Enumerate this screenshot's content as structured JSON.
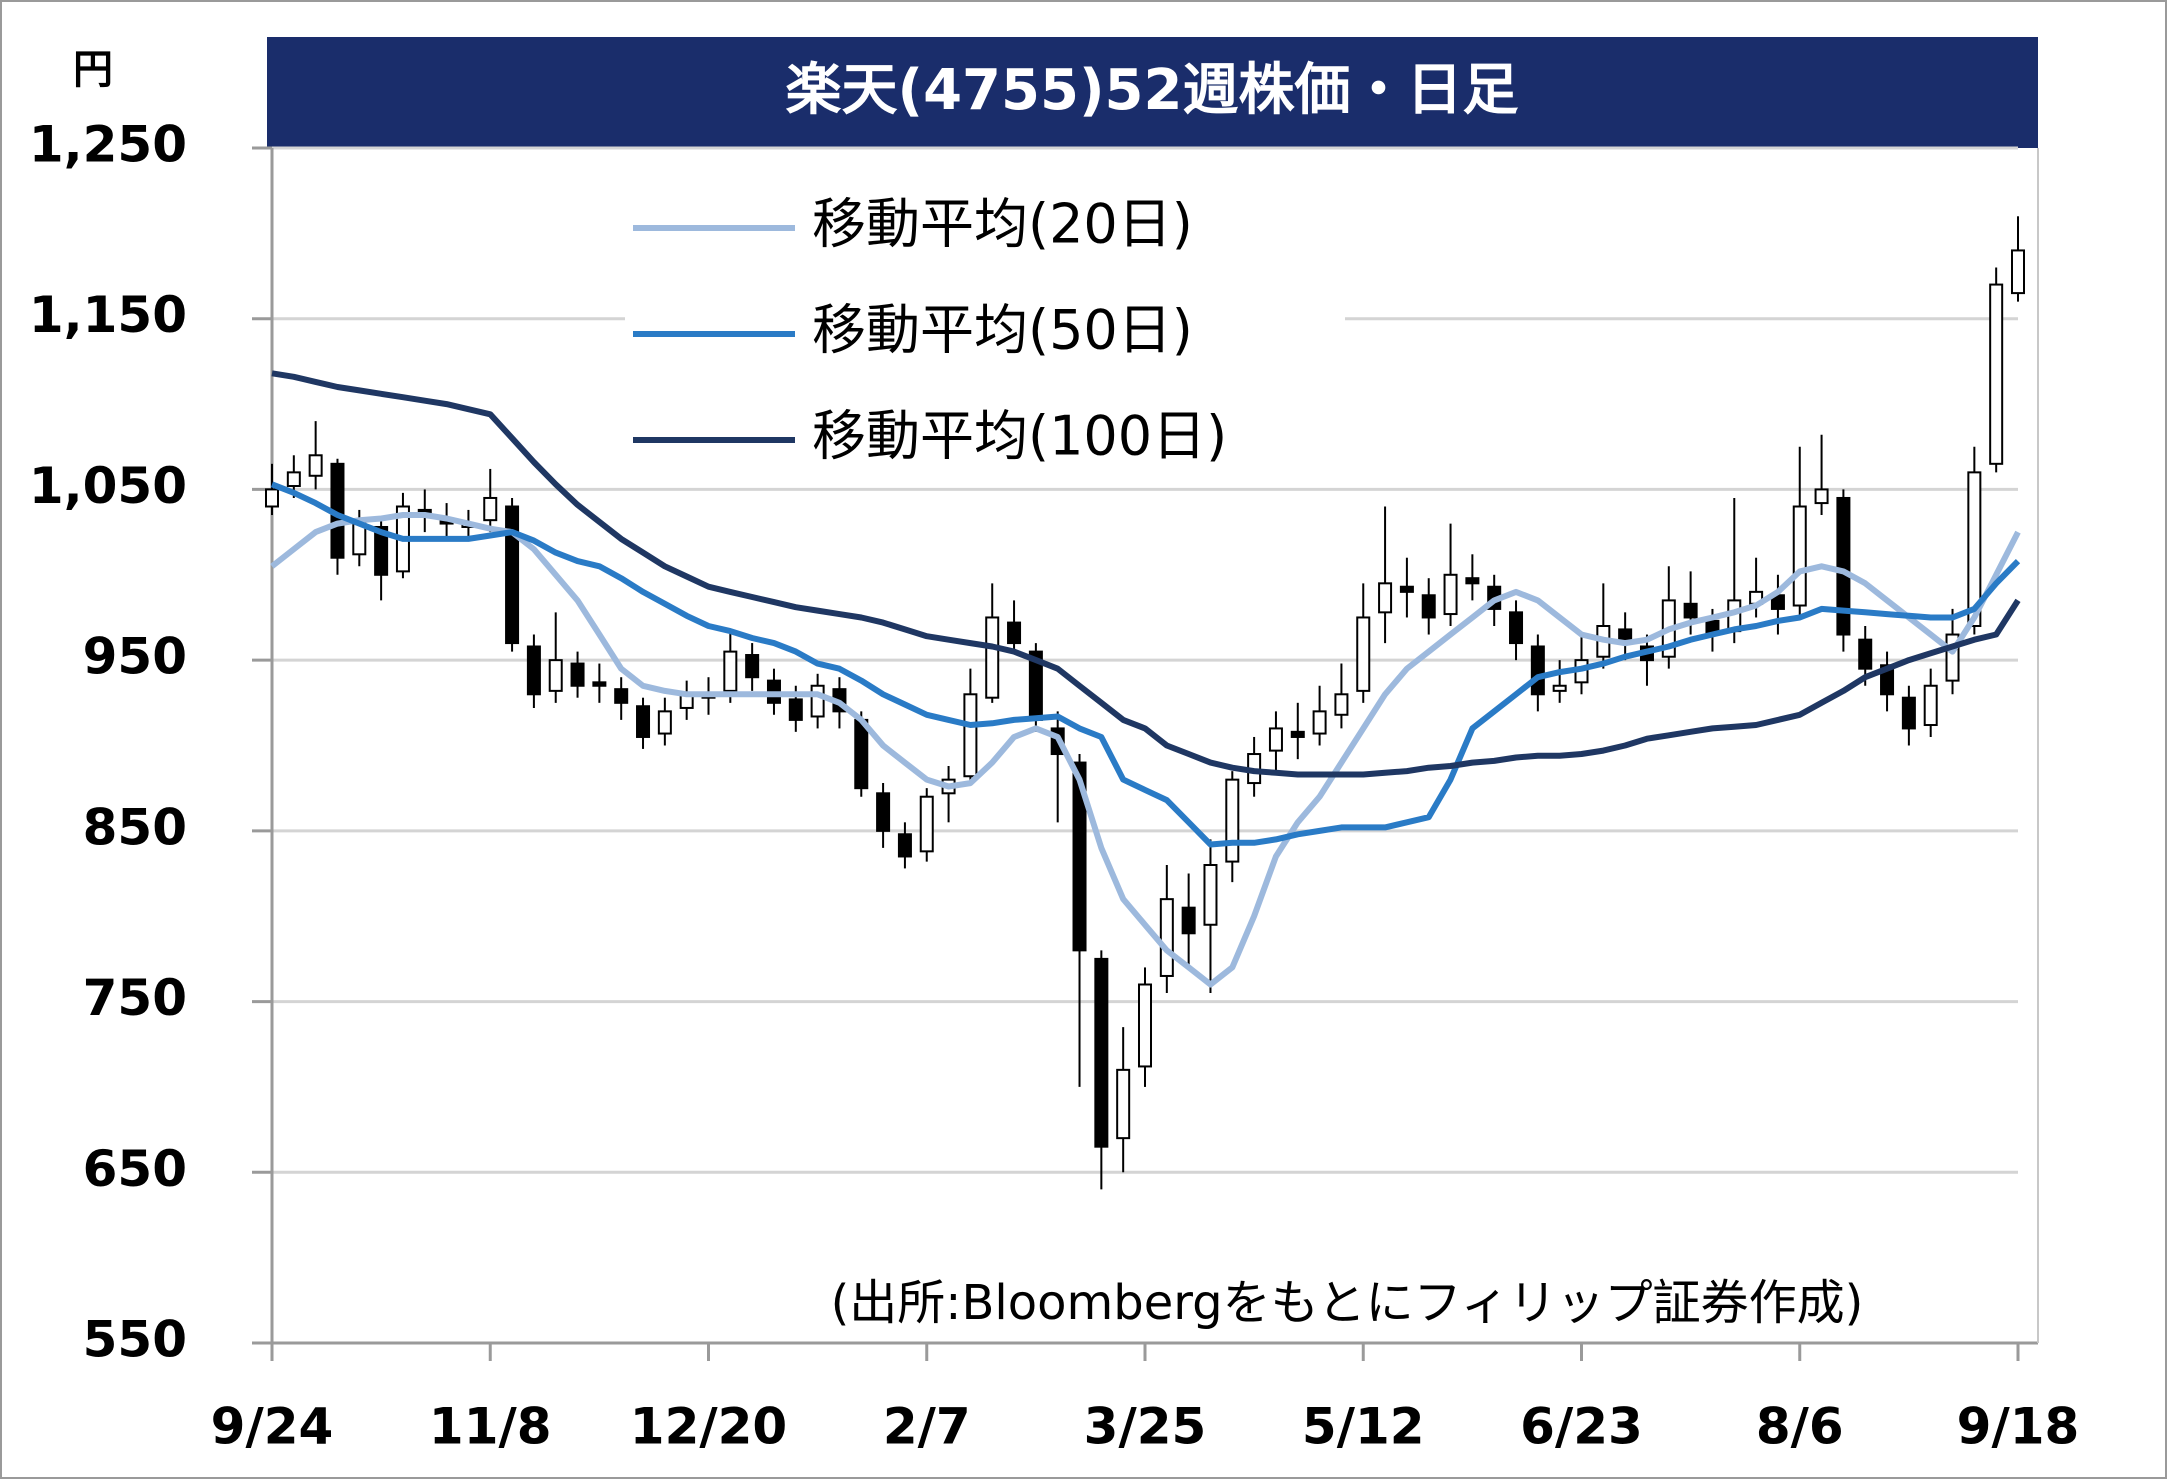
{
  "chart_data": {
    "type": "candlestick",
    "title": "楽天(4755)52週株価・日足",
    "y_unit": "円",
    "note": "(出所:Bloombergをもとにフィリップ証券作成)",
    "categories": [
      "9/24",
      null,
      null,
      null,
      null,
      null,
      null,
      null,
      null,
      null,
      "11/8",
      null,
      null,
      null,
      null,
      null,
      null,
      null,
      null,
      null,
      "12/20",
      null,
      null,
      null,
      null,
      null,
      null,
      null,
      null,
      null,
      "2/7",
      null,
      null,
      null,
      null,
      null,
      null,
      null,
      null,
      null,
      "3/25",
      null,
      null,
      null,
      null,
      null,
      null,
      null,
      null,
      null,
      "5/12",
      null,
      null,
      null,
      null,
      null,
      null,
      null,
      null,
      null,
      "6/23",
      null,
      null,
      null,
      null,
      null,
      null,
      null,
      null,
      null,
      "8/6",
      null,
      null,
      null,
      null,
      null,
      null,
      null,
      null,
      null,
      "9/18"
    ],
    "open": [
      1040,
      1052,
      1058,
      1065,
      1012,
      1028,
      1002,
      1038,
      1033,
      1028,
      1032,
      1040,
      958,
      932,
      948,
      937,
      933,
      923,
      907,
      922,
      928,
      932,
      953,
      938,
      927,
      917,
      933,
      915,
      872,
      848,
      838,
      872,
      882,
      928,
      972,
      955,
      910,
      890,
      775,
      670,
      712,
      765,
      805,
      795,
      832,
      878,
      897,
      908,
      907,
      918,
      932,
      978,
      993,
      988,
      977,
      998,
      993,
      978,
      958,
      932,
      937,
      952,
      968,
      958,
      952,
      983,
      973,
      967,
      983,
      988,
      982,
      1042,
      1045,
      962,
      947,
      928,
      912,
      938,
      970,
      1065,
      1165
    ],
    "high": [
      1065,
      1070,
      1090,
      1068,
      1038,
      1032,
      1048,
      1050,
      1042,
      1038,
      1062,
      1045,
      965,
      978,
      955,
      948,
      940,
      928,
      928,
      938,
      940,
      968,
      960,
      945,
      935,
      942,
      940,
      920,
      878,
      855,
      875,
      888,
      945,
      995,
      985,
      960,
      920,
      895,
      780,
      735,
      770,
      830,
      825,
      845,
      885,
      905,
      920,
      925,
      935,
      948,
      995,
      1040,
      1010,
      998,
      1030,
      1012,
      1000,
      985,
      965,
      950,
      965,
      995,
      978,
      965,
      1005,
      1002,
      980,
      1045,
      1010,
      1000,
      1075,
      1082,
      1050,
      970,
      955,
      935,
      945,
      980,
      1075,
      1180,
      1210
    ],
    "low": [
      1035,
      1045,
      1050,
      1000,
      1005,
      985,
      998,
      1025,
      1022,
      1020,
      1025,
      955,
      922,
      925,
      928,
      925,
      915,
      898,
      900,
      915,
      918,
      925,
      932,
      918,
      908,
      910,
      910,
      870,
      840,
      828,
      832,
      855,
      878,
      925,
      955,
      908,
      855,
      700,
      640,
      650,
      700,
      755,
      770,
      755,
      820,
      870,
      885,
      892,
      900,
      910,
      925,
      960,
      975,
      965,
      970,
      985,
      970,
      950,
      920,
      925,
      930,
      945,
      950,
      935,
      945,
      965,
      955,
      960,
      975,
      965,
      975,
      1035,
      955,
      935,
      920,
      900,
      905,
      930,
      965,
      1060,
      1160
    ],
    "close": [
      1050,
      1060,
      1070,
      1010,
      1030,
      1000,
      1040,
      1035,
      1030,
      1030,
      1045,
      960,
      930,
      950,
      935,
      935,
      925,
      905,
      920,
      930,
      930,
      955,
      940,
      925,
      915,
      935,
      920,
      875,
      850,
      835,
      870,
      880,
      930,
      975,
      960,
      915,
      895,
      780,
      665,
      710,
      760,
      810,
      790,
      830,
      880,
      895,
      910,
      905,
      920,
      930,
      975,
      995,
      990,
      975,
      1000,
      995,
      980,
      960,
      930,
      935,
      950,
      970,
      960,
      950,
      985,
      975,
      965,
      985,
      990,
      980,
      1040,
      1050,
      965,
      945,
      930,
      910,
      935,
      965,
      1060,
      1170,
      1190
    ],
    "up_color": "#ffffff",
    "down_color": "#000000",
    "series": [
      {
        "name": "移動平均(20日)",
        "color": "#9db9dd",
        "values": [
          1005,
          1015,
          1025,
          1030,
          1032,
          1033,
          1035,
          1035,
          1033,
          1030,
          1027,
          1025,
          1015,
          1000,
          985,
          965,
          945,
          935,
          932,
          930,
          930,
          930,
          930,
          930,
          930,
          930,
          925,
          915,
          900,
          890,
          880,
          876,
          878,
          890,
          905,
          910,
          905,
          880,
          840,
          810,
          795,
          780,
          770,
          760,
          770,
          800,
          835,
          855,
          870,
          890,
          910,
          930,
          945,
          955,
          965,
          975,
          985,
          990,
          985,
          975,
          965,
          962,
          960,
          962,
          968,
          972,
          975,
          978,
          982,
          990,
          1002,
          1005,
          1002,
          995,
          985,
          975,
          965,
          955,
          975,
          1000,
          1025
        ]
      },
      {
        "name": "移動平均(50日)",
        "color": "#2a7bc6",
        "values": [
          1053,
          1048,
          1042,
          1035,
          1030,
          1025,
          1021,
          1021,
          1021,
          1021,
          1023,
          1025,
          1020,
          1013,
          1008,
          1005,
          998,
          990,
          983,
          976,
          970,
          967,
          963,
          960,
          955,
          948,
          945,
          938,
          930,
          924,
          918,
          915,
          912,
          913,
          915,
          916,
          917,
          910,
          905,
          880,
          874,
          868,
          855,
          842,
          843,
          843,
          845,
          848,
          850,
          852,
          852,
          852,
          855,
          858,
          880,
          910,
          920,
          930,
          940,
          943,
          945,
          948,
          952,
          955,
          958,
          962,
          965,
          968,
          970,
          973,
          975,
          980,
          979,
          978,
          977,
          976,
          975,
          975,
          980,
          995,
          1008
        ]
      },
      {
        "name": "移動平均(100日)",
        "color": "#1f3763",
        "values": [
          1118,
          1116,
          1113,
          1110,
          1108,
          1106,
          1104,
          1102,
          1100,
          1097,
          1094,
          1080,
          1066,
          1053,
          1041,
          1031,
          1021,
          1013,
          1005,
          999,
          993,
          990,
          987,
          984,
          981,
          979,
          977,
          975,
          972,
          968,
          964,
          962,
          960,
          958,
          955,
          950,
          945,
          935,
          925,
          915,
          910,
          900,
          895,
          890,
          887,
          885,
          884,
          883,
          883,
          883,
          883,
          884,
          885,
          887,
          888,
          890,
          891,
          893,
          894,
          894,
          895,
          897,
          900,
          904,
          906,
          908,
          910,
          911,
          912,
          915,
          918,
          925,
          932,
          940,
          945,
          950,
          954,
          958,
          962,
          965,
          985
        ]
      }
    ],
    "ylim": [
      550,
      1250
    ],
    "yticks": [
      550,
      650,
      750,
      850,
      950,
      {
        "value": 1050,
        "label": "1,050"
      },
      {
        "value": 1150,
        "label": "1,150"
      },
      {
        "value": 1250,
        "label": "1,250"
      }
    ],
    "grid": true
  }
}
